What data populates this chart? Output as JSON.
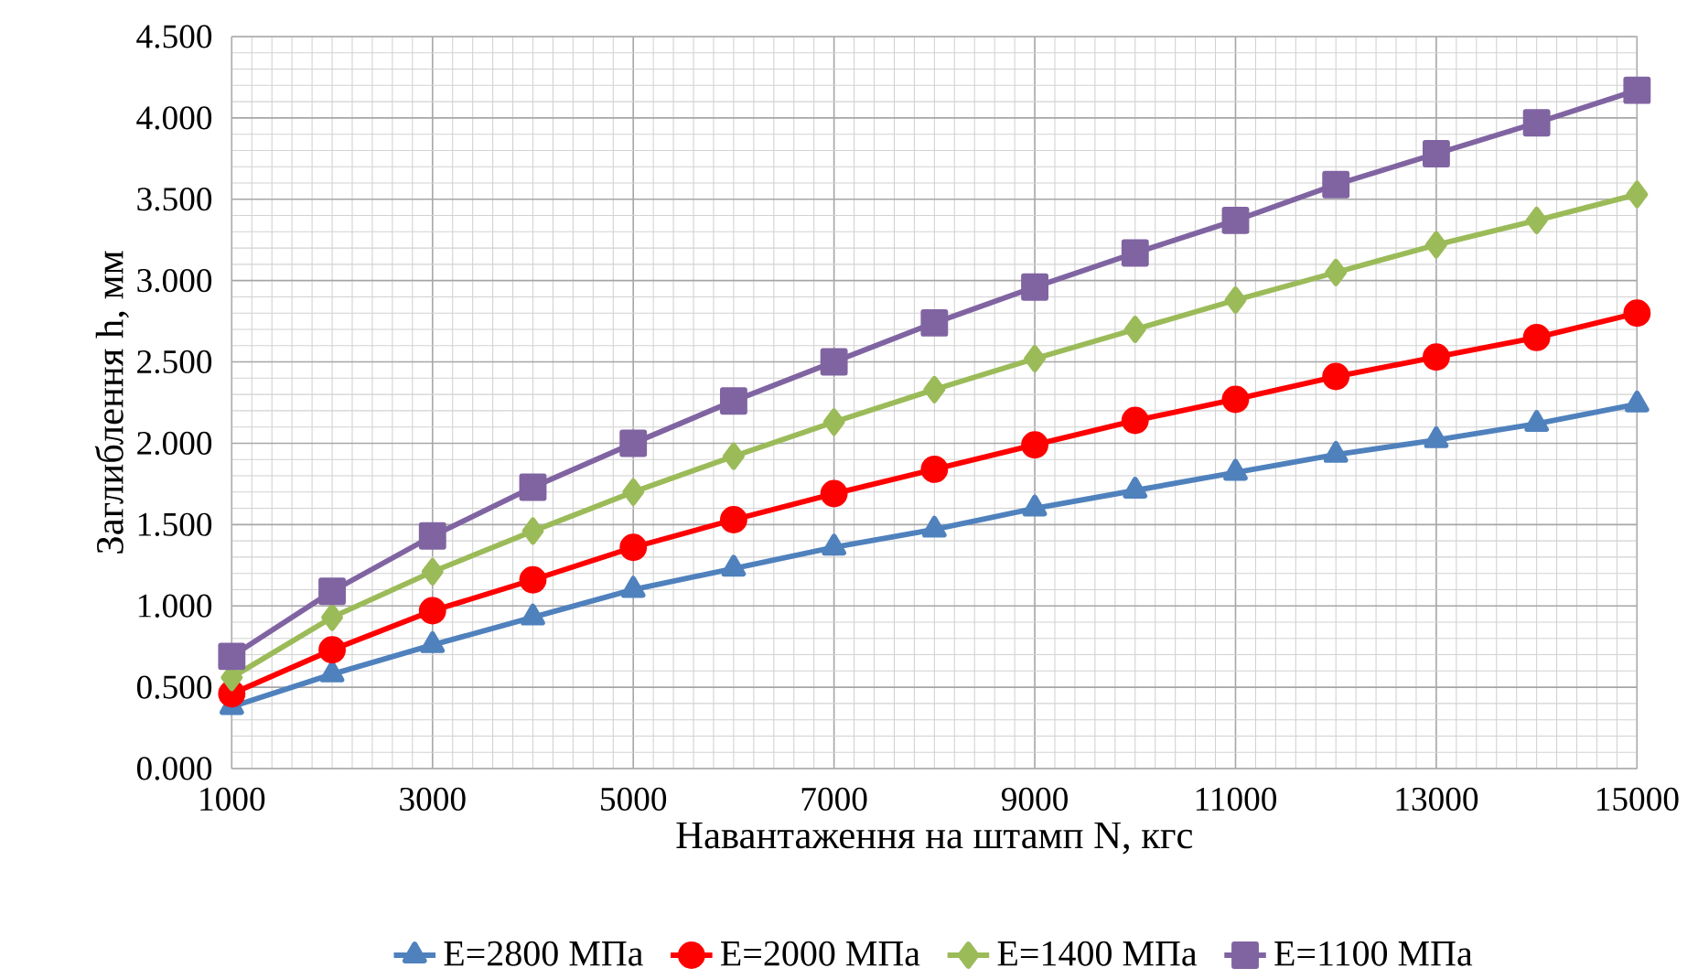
{
  "chart_data": {
    "type": "line",
    "xlabel": "Навантаження на штамп N, кгс",
    "ylabel": "Заглиблення h, мм",
    "x": [
      1000,
      2000,
      3000,
      4000,
      5000,
      6000,
      7000,
      8000,
      9000,
      10000,
      11000,
      12000,
      13000,
      14000,
      15000
    ],
    "series": [
      {
        "name": "E=2800 МПа",
        "color": "#4f81bd",
        "marker": "triangle",
        "values": [
          0.38,
          0.58,
          0.76,
          0.93,
          1.1,
          1.23,
          1.36,
          1.47,
          1.6,
          1.71,
          1.82,
          1.93,
          2.02,
          2.12,
          2.24
        ]
      },
      {
        "name": "E=2000 МПа",
        "color": "#ff0000",
        "marker": "circle",
        "values": [
          0.46,
          0.73,
          0.97,
          1.16,
          1.36,
          1.53,
          1.69,
          1.84,
          1.99,
          2.14,
          2.27,
          2.41,
          2.53,
          2.65,
          2.8
        ]
      },
      {
        "name": "E=1400 МПа",
        "color": "#9bbb59",
        "marker": "diamond",
        "values": [
          0.56,
          0.93,
          1.21,
          1.46,
          1.7,
          1.92,
          2.13,
          2.33,
          2.52,
          2.7,
          2.88,
          3.05,
          3.22,
          3.37,
          3.53
        ]
      },
      {
        "name": "E=1100 МПа",
        "color": "#8064a2",
        "marker": "square",
        "values": [
          0.69,
          1.09,
          1.43,
          1.73,
          2.0,
          2.26,
          2.5,
          2.74,
          2.96,
          3.17,
          3.37,
          3.59,
          3.78,
          3.97,
          4.17
        ]
      }
    ],
    "xlim": [
      1000,
      15000
    ],
    "xticks": [
      1000,
      3000,
      5000,
      7000,
      9000,
      11000,
      13000,
      15000
    ],
    "ylim": [
      0,
      4.5
    ],
    "yticks": [
      {
        "value": 0,
        "label": "0.000"
      },
      {
        "value": 0.5,
        "label": "0.500"
      },
      {
        "value": 1,
        "label": "1.000"
      },
      {
        "value": 1.5,
        "label": "1.500"
      },
      {
        "value": 2,
        "label": "2.000"
      },
      {
        "value": 2.5,
        "label": "2.500"
      },
      {
        "value": 3,
        "label": "3.000"
      },
      {
        "value": 3.5,
        "label": "3.500"
      },
      {
        "value": 4,
        "label": "4.000"
      },
      {
        "value": 4.5,
        "label": "4.500"
      }
    ],
    "grid": true,
    "legend": "bottom",
    "line_style": "solid"
  }
}
